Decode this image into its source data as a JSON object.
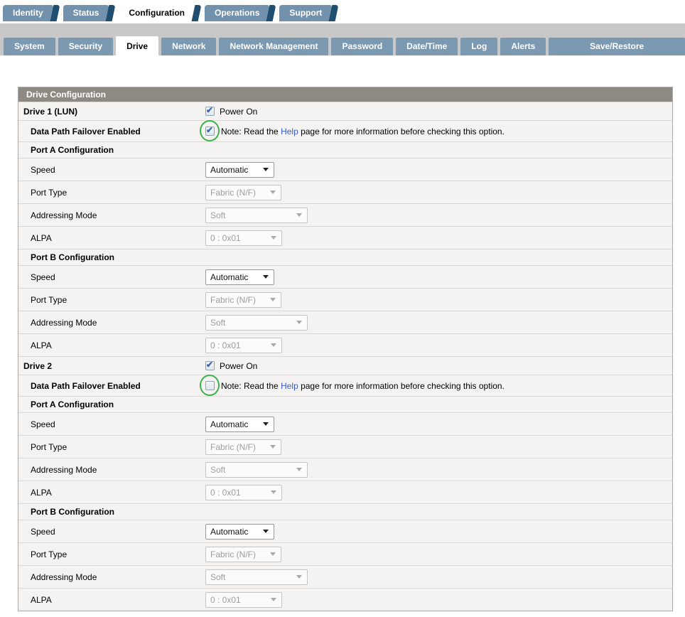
{
  "tabs_primary": [
    {
      "label": "Identity",
      "active": false
    },
    {
      "label": "Status",
      "active": false
    },
    {
      "label": "Configuration",
      "active": true
    },
    {
      "label": "Operations",
      "active": false
    },
    {
      "label": "Support",
      "active": false
    }
  ],
  "tabs_secondary": [
    {
      "label": "System",
      "active": false
    },
    {
      "label": "Security",
      "active": false
    },
    {
      "label": "Drive",
      "active": true
    },
    {
      "label": "Network",
      "active": false
    },
    {
      "label": "Network Management",
      "active": false
    },
    {
      "label": "Password",
      "active": false
    },
    {
      "label": "Date/Time",
      "active": false
    },
    {
      "label": "Log",
      "active": false
    },
    {
      "label": "Alerts",
      "active": false
    },
    {
      "label": "Save/Restore",
      "active": false
    }
  ],
  "table": {
    "title": "Drive Configuration",
    "rows": [
      {
        "type": "drive",
        "label": "Drive 1 (LUN)",
        "checkbox_label": "Power On",
        "checked": true
      },
      {
        "type": "failover",
        "label": "Data Path Failover Enabled",
        "checked": true,
        "circled": true,
        "note_before": "Note: Read the ",
        "note_link": "Help",
        "note_after": " page for more information before checking this option."
      },
      {
        "type": "section",
        "label": "Port A Configuration"
      },
      {
        "type": "select",
        "label": "Speed",
        "value": "Automatic",
        "control": "speed",
        "enabled": true
      },
      {
        "type": "select",
        "label": "Port Type",
        "value": "Fabric (N/F)",
        "control": "porttype",
        "enabled": false
      },
      {
        "type": "select",
        "label": "Addressing Mode",
        "value": "Soft",
        "control": "addr",
        "enabled": false
      },
      {
        "type": "select",
        "label": "ALPA",
        "value": "0 : 0x01",
        "control": "alpa",
        "enabled": false
      },
      {
        "type": "section",
        "label": "Port B Configuration"
      },
      {
        "type": "select",
        "label": "Speed",
        "value": "Automatic",
        "control": "speed",
        "enabled": true
      },
      {
        "type": "select",
        "label": "Port Type",
        "value": "Fabric (N/F)",
        "control": "porttype",
        "enabled": false
      },
      {
        "type": "select",
        "label": "Addressing Mode",
        "value": "Soft",
        "control": "addr",
        "enabled": false
      },
      {
        "type": "select",
        "label": "ALPA",
        "value": "0 : 0x01",
        "control": "alpa",
        "enabled": false
      },
      {
        "type": "drive",
        "label": "Drive 2",
        "checkbox_label": "Power On",
        "checked": true
      },
      {
        "type": "failover",
        "label": "Data Path Failover Enabled",
        "checked": false,
        "circled": true,
        "note_before": "Note: Read the ",
        "note_link": "Help",
        "note_after": " page for more information before checking this option."
      },
      {
        "type": "section",
        "label": "Port A Configuration"
      },
      {
        "type": "select",
        "label": "Speed",
        "value": "Automatic",
        "control": "speed",
        "enabled": true
      },
      {
        "type": "select",
        "label": "Port Type",
        "value": "Fabric (N/F)",
        "control": "porttype",
        "enabled": false
      },
      {
        "type": "select",
        "label": "Addressing Mode",
        "value": "Soft",
        "control": "addr",
        "enabled": false
      },
      {
        "type": "select",
        "label": "ALPA",
        "value": "0 : 0x01",
        "control": "alpa",
        "enabled": false
      },
      {
        "type": "section",
        "label": "Port B Configuration"
      },
      {
        "type": "select",
        "label": "Speed",
        "value": "Automatic",
        "control": "speed",
        "enabled": true
      },
      {
        "type": "select",
        "label": "Port Type",
        "value": "Fabric (N/F)",
        "control": "porttype",
        "enabled": false
      },
      {
        "type": "select",
        "label": "Addressing Mode",
        "value": "Soft",
        "control": "addr",
        "enabled": false
      },
      {
        "type": "select",
        "label": "ALPA",
        "value": "0 : 0x01",
        "control": "alpa",
        "enabled": false
      }
    ]
  },
  "icons": {
    "chevron-down-icon": "▾",
    "check-icon": "✔",
    "green-circle-annotation": "ellipse",
    "tab-fold-decoration": "ribbon-fold"
  },
  "colors": {
    "primary_tab_blue": "#7191ac",
    "tab_fold_dark": "#1f4e6e",
    "secondary_tab_blue": "#7c99b2",
    "band_gray": "#c8c8c8",
    "table_header_gray": "#8e8983",
    "row_bg": "#f4f3f2",
    "link_blue": "#3a5bc7",
    "annotation_green": "#3db14a",
    "check_blue": "#3e63ad",
    "disabled_text": "#9d9d9d"
  }
}
